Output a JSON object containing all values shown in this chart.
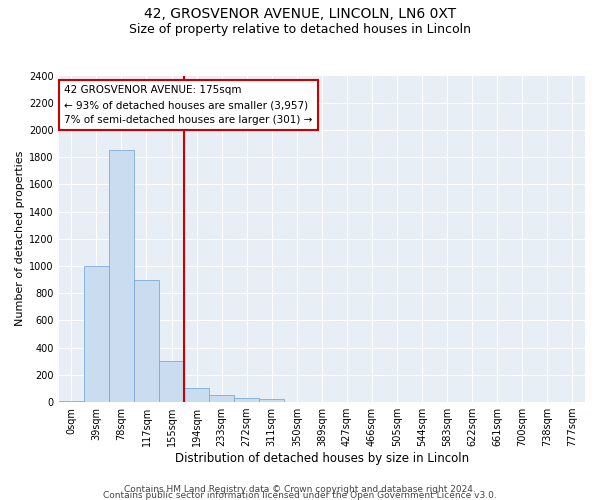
{
  "title_line1": "42, GROSVENOR AVENUE, LINCOLN, LN6 0XT",
  "title_line2": "Size of property relative to detached houses in Lincoln",
  "xlabel": "Distribution of detached houses by size in Lincoln",
  "ylabel": "Number of detached properties",
  "bin_labels": [
    "0sqm",
    "39sqm",
    "78sqm",
    "117sqm",
    "155sqm",
    "194sqm",
    "233sqm",
    "272sqm",
    "311sqm",
    "350sqm",
    "389sqm",
    "427sqm",
    "466sqm",
    "505sqm",
    "544sqm",
    "583sqm",
    "622sqm",
    "661sqm",
    "700sqm",
    "738sqm",
    "777sqm"
  ],
  "bar_values": [
    10,
    1000,
    1850,
    900,
    300,
    100,
    50,
    30,
    20,
    0,
    0,
    0,
    0,
    0,
    0,
    0,
    0,
    0,
    0,
    0,
    0
  ],
  "bar_color": "#c9dcf0",
  "bar_edgecolor": "#7aacda",
  "ylim": [
    0,
    2400
  ],
  "yticks": [
    0,
    200,
    400,
    600,
    800,
    1000,
    1200,
    1400,
    1600,
    1800,
    2000,
    2200,
    2400
  ],
  "property_size": 175,
  "bin_width": 39,
  "red_line_color": "#cc0000",
  "annotation_text_line1": "42 GROSVENOR AVENUE: 175sqm",
  "annotation_text_line2": "← 93% of detached houses are smaller (3,957)",
  "annotation_text_line3": "7% of semi-detached houses are larger (301) →",
  "annotation_box_facecolor": "#ffffff",
  "annotation_box_edgecolor": "#cc0000",
  "footer_line1": "Contains HM Land Registry data © Crown copyright and database right 2024.",
  "footer_line2": "Contains public sector information licensed under the Open Government Licence v3.0.",
  "background_color": "#ffffff",
  "plot_bg_color": "#e8eef6",
  "grid_color": "#ffffff",
  "title1_fontsize": 10,
  "title2_fontsize": 9,
  "xlabel_fontsize": 8.5,
  "ylabel_fontsize": 8,
  "tick_fontsize": 7,
  "annotation_fontsize": 7.5,
  "footer_fontsize": 6.5
}
